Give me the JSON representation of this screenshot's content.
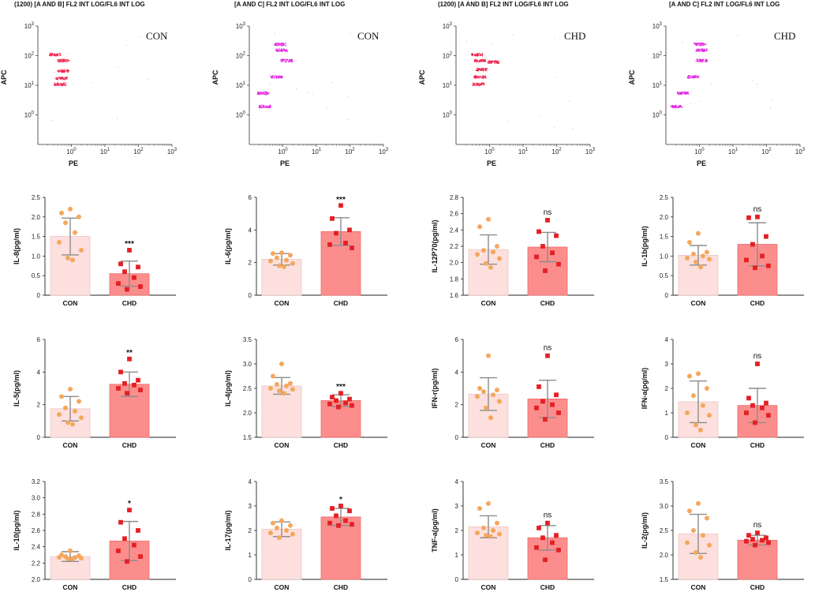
{
  "flow_panels": [
    {
      "title": "(1200) [A AND B] FL2 INT LOG/FL6 INT LOG",
      "tag": "CON",
      "xlabel": "PE",
      "ylabel": "APC",
      "xticks": [
        "10^0",
        "10^1",
        "10^2",
        "10^3"
      ],
      "yticks": [
        "10^0",
        "10^1",
        "10^2",
        "10^3"
      ],
      "dot_color": "#ee1d4a"
    },
    {
      "title": "[A AND C] FL2 INT LOG/FL6 INT LOG",
      "tag": "CON",
      "xlabel": "PE",
      "ylabel": "APC",
      "xticks": [
        "10^0",
        "10^1",
        "10^2",
        "10^3"
      ],
      "yticks": [
        "10^0",
        "10^1",
        "10^2",
        "10^3"
      ],
      "dot_color": "#e01ee0"
    },
    {
      "title": "(1200) [A AND B] FL2 INT LOG/FL6 INT LOG",
      "tag": "CHD",
      "xlabel": "PE",
      "ylabel": "APC",
      "xticks": [
        "10^0",
        "10^1",
        "10^2",
        "10^3"
      ],
      "yticks": [
        "10^0",
        "10^1",
        "10^2",
        "10^3"
      ],
      "dot_color": "#ee1d4a"
    },
    {
      "title": "[A AND C] FL2 INT LOG/FL6 INT LOG",
      "tag": "CHD",
      "xlabel": "PE",
      "ylabel": "APC",
      "xticks": [
        "10^0",
        "10^1",
        "10^2",
        "10^3"
      ],
      "yticks": [
        "10^0",
        "10^1",
        "10^2",
        "10^3"
      ],
      "dot_color": "#e01ee0"
    }
  ],
  "chart_data": [
    {
      "type": "bar",
      "ylabel": "IL-8(pg/ml)",
      "categories": [
        "CON",
        "CHD"
      ],
      "ylim": [
        0,
        2.5
      ],
      "yticks": [
        "0",
        "0.5",
        "1.0",
        "1.5",
        "2.0",
        "2.5"
      ],
      "tickvals": [
        0,
        0.5,
        1.0,
        1.5,
        2.0,
        2.5
      ],
      "values": [
        1.5,
        0.55
      ],
      "errors": [
        0.47,
        0.32
      ],
      "significance": "***",
      "points": [
        [
          2.2,
          2.1,
          2.0,
          1.85,
          1.6,
          1.35,
          1.15,
          0.95,
          0.9
        ],
        [
          1.15,
          0.8,
          0.72,
          0.6,
          0.45,
          0.3,
          0.22,
          0.15
        ]
      ]
    },
    {
      "type": "bar",
      "ylabel": "IL-6(pg/ml)",
      "categories": [
        "CON",
        "CHD"
      ],
      "ylim": [
        0,
        6
      ],
      "yticks": [
        "0",
        "2",
        "4",
        "6"
      ],
      "tickvals": [
        0,
        2,
        4,
        6
      ],
      "values": [
        2.2,
        3.9
      ],
      "errors": [
        0.35,
        0.85
      ],
      "significance": "***",
      "points": [
        [
          2.6,
          2.55,
          2.45,
          2.3,
          2.15,
          2.1,
          1.95,
          1.8,
          1.75
        ],
        [
          5.5,
          4.7,
          4.0,
          3.8,
          3.2,
          3.1,
          2.9
        ]
      ]
    },
    {
      "type": "bar",
      "ylabel": "IL-12P70(pg/ml)",
      "categories": [
        "CON",
        "CHD"
      ],
      "ylim": [
        1.6,
        2.8
      ],
      "yticks": [
        "1.6",
        "1.8",
        "2.0",
        "2.2",
        "2.4",
        "2.6",
        "2.8"
      ],
      "tickvals": [
        1.6,
        1.8,
        2.0,
        2.2,
        2.4,
        2.6,
        2.8
      ],
      "values": [
        2.16,
        2.19
      ],
      "errors": [
        0.18,
        0.18
      ],
      "significance": "ns",
      "points": [
        [
          2.53,
          2.44,
          2.2,
          2.15,
          2.13,
          2.1,
          2.05,
          1.99,
          1.94
        ],
        [
          2.52,
          2.38,
          2.33,
          2.2,
          2.12,
          2.07,
          1.98,
          1.9
        ]
      ]
    },
    {
      "type": "bar",
      "ylabel": "IL-1b(pg/ml)",
      "categories": [
        "CON",
        "CHD"
      ],
      "ylim": [
        0,
        2.5
      ],
      "yticks": [
        "0",
        "0.5",
        "1.0",
        "1.5",
        "2.0",
        "2.5"
      ],
      "tickvals": [
        0,
        0.5,
        1.0,
        1.5,
        2.0,
        2.5
      ],
      "values": [
        1.02,
        1.3
      ],
      "errors": [
        0.25,
        0.55
      ],
      "significance": "ns",
      "points": [
        [
          1.58,
          1.35,
          1.1,
          1.05,
          1.0,
          0.95,
          0.92,
          0.85,
          0.72
        ],
        [
          2.0,
          1.98,
          1.5,
          1.3,
          1.0,
          0.9,
          0.75,
          0.7
        ]
      ]
    },
    {
      "type": "bar",
      "ylabel": "IL-5(pg/ml)",
      "categories": [
        "CON",
        "CHD"
      ],
      "ylim": [
        0,
        6
      ],
      "yticks": [
        "0",
        "2",
        "4",
        "6"
      ],
      "tickvals": [
        0,
        2,
        4,
        6
      ],
      "values": [
        1.75,
        3.25
      ],
      "errors": [
        0.75,
        0.75
      ],
      "significance": "**",
      "points": [
        [
          2.95,
          2.5,
          2.2,
          1.8,
          1.6,
          1.4,
          1.2,
          0.9,
          0.8
        ],
        [
          4.8,
          4.0,
          3.5,
          3.3,
          3.2,
          3.0,
          2.9,
          2.7
        ]
      ]
    },
    {
      "type": "bar",
      "ylabel": "IL-4(pg/ml)",
      "categories": [
        "CON",
        "CHD"
      ],
      "ylim": [
        1.5,
        3.5
      ],
      "yticks": [
        "1.5",
        "2.0",
        "2.5",
        "3.0",
        "3.5"
      ],
      "tickvals": [
        1.5,
        2.0,
        2.5,
        3.0,
        3.5
      ],
      "values": [
        2.55,
        2.25
      ],
      "errors": [
        0.17,
        0.12
      ],
      "significance": "***",
      "points": [
        [
          3.0,
          2.75,
          2.6,
          2.58,
          2.55,
          2.5,
          2.48,
          2.45,
          2.4
        ],
        [
          2.4,
          2.32,
          2.28,
          2.25,
          2.2,
          2.18,
          2.15,
          2.12
        ]
      ]
    },
    {
      "type": "bar",
      "ylabel": "IFN-r(pg/ml)",
      "categories": [
        "CON",
        "CHD"
      ],
      "ylim": [
        0,
        6
      ],
      "yticks": [
        "0",
        "2",
        "4",
        "6"
      ],
      "tickvals": [
        0,
        2,
        4,
        6
      ],
      "values": [
        2.65,
        2.35
      ],
      "errors": [
        1.0,
        1.15
      ],
      "significance": "ns",
      "points": [
        [
          5.0,
          3.0,
          2.9,
          2.8,
          2.6,
          2.5,
          2.2,
          1.8,
          1.2
        ],
        [
          5.0,
          3.1,
          2.6,
          2.2,
          2.0,
          1.8,
          1.5,
          1.1
        ]
      ]
    },
    {
      "type": "bar",
      "ylabel": "IFN-a(pg/ml)",
      "categories": [
        "CON",
        "CHD"
      ],
      "ylim": [
        0,
        4
      ],
      "yticks": [
        "0",
        "1",
        "2",
        "3",
        "4"
      ],
      "tickvals": [
        0,
        1,
        2,
        3,
        4
      ],
      "values": [
        1.45,
        1.3
      ],
      "errors": [
        0.85,
        0.7
      ],
      "significance": "ns",
      "points": [
        [
          2.6,
          2.5,
          2.0,
          1.7,
          1.3,
          1.0,
          0.9,
          0.5,
          0.3
        ],
        [
          3.0,
          1.6,
          1.4,
          1.3,
          1.2,
          1.0,
          0.9,
          0.6
        ]
      ]
    },
    {
      "type": "bar",
      "ylabel": "IL-10(pg/ml)",
      "categories": [
        "CON",
        "CHD"
      ],
      "ylim": [
        2.0,
        3.2
      ],
      "yticks": [
        "2.0",
        "2.2",
        "2.4",
        "2.6",
        "2.8",
        "3.0",
        "3.2"
      ],
      "tickvals": [
        2.0,
        2.2,
        2.4,
        2.6,
        2.8,
        3.0,
        3.2
      ],
      "values": [
        2.28,
        2.47
      ],
      "errors": [
        0.06,
        0.24
      ],
      "significance": "*",
      "points": [
        [
          2.35,
          2.3,
          2.29,
          2.28,
          2.27,
          2.27,
          2.26,
          2.25,
          2.25
        ],
        [
          2.85,
          2.7,
          2.6,
          2.5,
          2.42,
          2.35,
          2.28,
          2.22
        ]
      ]
    },
    {
      "type": "bar",
      "ylabel": "IL-17(pg/ml)",
      "categories": [
        "CON",
        "CHD"
      ],
      "ylim": [
        0,
        4
      ],
      "yticks": [
        "0",
        "1",
        "2",
        "3",
        "4"
      ],
      "tickvals": [
        0,
        1,
        2,
        3,
        4
      ],
      "values": [
        2.05,
        2.55
      ],
      "errors": [
        0.3,
        0.35
      ],
      "significance": "*",
      "points": [
        [
          2.4,
          2.3,
          2.2,
          2.1,
          2.0,
          1.9,
          1.85,
          1.7
        ],
        [
          3.0,
          2.9,
          2.8,
          2.6,
          2.4,
          2.3,
          2.25,
          2.2
        ]
      ]
    },
    {
      "type": "bar",
      "ylabel": "TNF-a(pg/ml)",
      "categories": [
        "CON",
        "CHD"
      ],
      "ylim": [
        0,
        4
      ],
      "yticks": [
        "0",
        "1",
        "2",
        "3",
        "4"
      ],
      "tickvals": [
        0,
        1,
        2,
        3,
        4
      ],
      "values": [
        2.15,
        1.7
      ],
      "errors": [
        0.45,
        0.5
      ],
      "significance": "ns",
      "points": [
        [
          3.1,
          2.9,
          2.3,
          2.1,
          2.0,
          1.9,
          1.85,
          1.8,
          1.75
        ],
        [
          2.3,
          2.1,
          1.8,
          1.7,
          1.5,
          1.3,
          1.2,
          0.8
        ]
      ]
    },
    {
      "type": "bar",
      "ylabel": "IL-2(pg/ml)",
      "categories": [
        "CON",
        "CHD"
      ],
      "ylim": [
        1.5,
        3.5
      ],
      "yticks": [
        "1.5",
        "2.0",
        "2.5",
        "3.0",
        "3.5"
      ],
      "tickvals": [
        1.5,
        2.0,
        2.5,
        3.0,
        3.5
      ],
      "values": [
        2.43,
        2.3
      ],
      "errors": [
        0.4,
        0.1
      ],
      "significance": "ns",
      "points": [
        [
          3.05,
          2.9,
          2.75,
          2.5,
          2.4,
          2.25,
          2.2,
          2.05,
          1.95
        ],
        [
          2.45,
          2.4,
          2.35,
          2.32,
          2.3,
          2.28,
          2.25,
          2.2
        ]
      ]
    }
  ],
  "colors": {
    "con_bar": "#fde0de",
    "con_edge": "#e9c6c3",
    "chd_bar": "#fb8e8c",
    "chd_edge": "#ef6a68",
    "con_point": "#f5a75d",
    "chd_point": "#e42025",
    "error_bar": "#8c8c8c"
  }
}
